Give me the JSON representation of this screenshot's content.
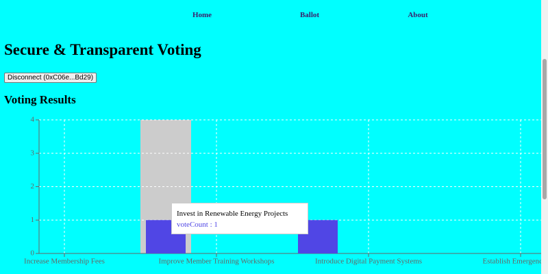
{
  "nav": [
    "Home",
    "Ballot",
    "About"
  ],
  "header": {
    "title": "Secure & Transparent Voting",
    "button": "Disconnect (0xC06e...Bd29)",
    "section": "Voting Results"
  },
  "chart_data": {
    "type": "bar",
    "categories": [
      "Increase Membership Fees",
      null,
      null,
      "Improve Member Training Workshops",
      null,
      null,
      "Introduce Digital Payment Systems",
      null,
      null,
      "Establish Emergency Fur"
    ],
    "series": [
      {
        "name": "voteCount",
        "color": "#5046e5",
        "values": [
          0,
          0,
          1,
          0,
          0,
          1,
          0,
          0,
          0,
          0
        ]
      }
    ],
    "ylim": [
      0,
      4
    ],
    "yticks": [
      0,
      1,
      2,
      3,
      4
    ],
    "grid": true,
    "hover_index": 2,
    "tooltip": {
      "title": "Invest in Renewable Energy Projects",
      "text": "voteCount : 1"
    }
  }
}
